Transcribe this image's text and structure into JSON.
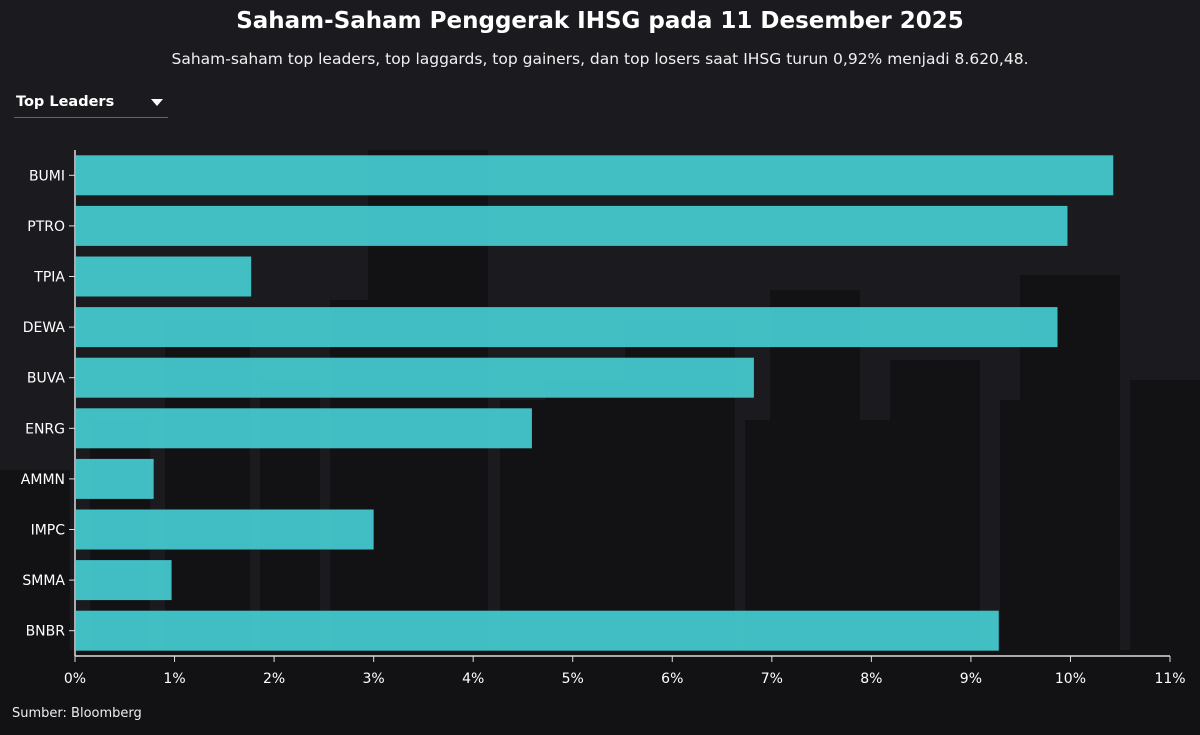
{
  "title": "Saham-Saham Penggerak IHSG pada 11 Desember 2025",
  "subtitle": "Saham-saham top leaders, top laggards, top gainers, dan top losers saat IHSG turun 0,92% menjadi 8.620,48.",
  "dropdown": {
    "selected": "Top Leaders",
    "icon": "caret-down-icon"
  },
  "source": "Sumber: Bloomberg",
  "colors": {
    "bar": "#45c8cc",
    "background": "#1b1a1f"
  },
  "chart_data": {
    "type": "bar",
    "orientation": "horizontal",
    "categories": [
      "BUMI",
      "PTRO",
      "TPIA",
      "DEWA",
      "BUVA",
      "ENRG",
      "AMMN",
      "IMPC",
      "SMMA",
      "BNBR"
    ],
    "values": [
      10.43,
      9.97,
      1.77,
      9.87,
      6.82,
      4.59,
      0.79,
      3.0,
      0.97,
      9.28
    ],
    "xlim": [
      0,
      11
    ],
    "xticks": [
      "0%",
      "1%",
      "2%",
      "3%",
      "4%",
      "5%",
      "6%",
      "7%",
      "8%",
      "9%",
      "10%",
      "11%"
    ],
    "xlabel": "",
    "ylabel": "",
    "grid": false
  }
}
